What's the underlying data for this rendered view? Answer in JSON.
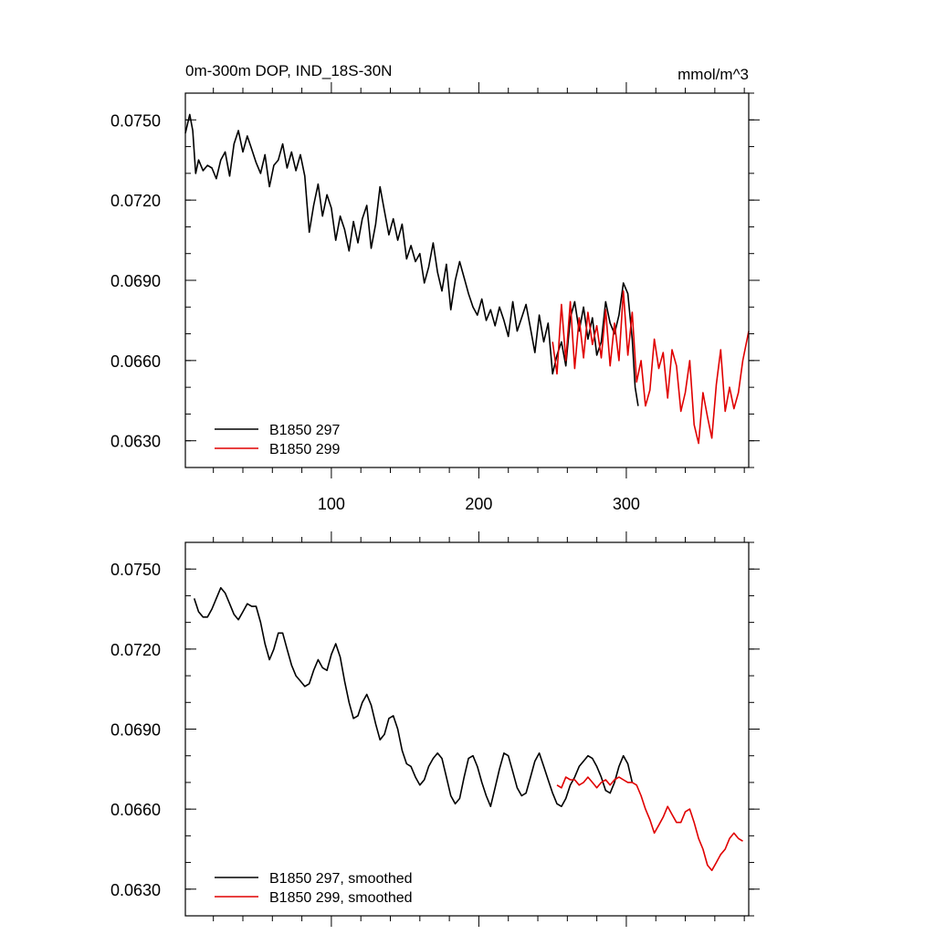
{
  "chart_data": [
    {
      "type": "line",
      "title": "0m-300m DOP, IND_18S-30N",
      "units": "mmol/m^3",
      "xlabel": "",
      "ylabel": "",
      "xlim": [
        1,
        383
      ],
      "ylim": [
        0.062,
        0.076
      ],
      "xticks": [
        100,
        200,
        300
      ],
      "xtick_labels": [
        "100",
        "200",
        "300"
      ],
      "yticks": [
        0.063,
        0.066,
        0.069,
        0.072,
        0.075
      ],
      "ytick_labels": [
        "0.0630",
        "0.0660",
        "0.0690",
        "0.0720",
        "0.0750"
      ],
      "grid": false,
      "legend_position": "bottom-left",
      "series": [
        {
          "name": "B1850 297",
          "color": "#000000",
          "x": [
            1,
            4,
            6,
            8,
            10,
            13,
            16,
            19,
            22,
            25,
            28,
            31,
            34,
            37,
            40,
            43,
            46,
            49,
            52,
            55,
            58,
            61,
            64,
            67,
            70,
            73,
            76,
            79,
            82,
            85,
            88,
            91,
            94,
            97,
            100,
            103,
            106,
            109,
            112,
            115,
            118,
            121,
            124,
            127,
            130,
            133,
            136,
            139,
            142,
            145,
            148,
            151,
            154,
            157,
            160,
            163,
            166,
            169,
            172,
            175,
            178,
            181,
            184,
            187,
            190,
            193,
            196,
            199,
            202,
            205,
            208,
            211,
            214,
            217,
            220,
            223,
            226,
            229,
            232,
            235,
            238,
            241,
            244,
            247,
            250,
            253,
            256,
            259,
            262,
            265,
            268,
            271,
            274,
            277,
            280,
            283,
            286,
            289,
            292,
            295,
            298,
            301,
            304,
            306,
            308
          ],
          "values": [
            0.0745,
            0.0752,
            0.0746,
            0.073,
            0.0735,
            0.0731,
            0.0733,
            0.0732,
            0.0728,
            0.0735,
            0.0738,
            0.0729,
            0.0741,
            0.0746,
            0.0738,
            0.0744,
            0.0739,
            0.0734,
            0.073,
            0.0737,
            0.0725,
            0.0733,
            0.0735,
            0.0741,
            0.0732,
            0.0738,
            0.0731,
            0.0737,
            0.0729,
            0.0708,
            0.0718,
            0.0726,
            0.0714,
            0.0722,
            0.0717,
            0.0705,
            0.0714,
            0.0709,
            0.0701,
            0.0712,
            0.0704,
            0.0713,
            0.0718,
            0.0702,
            0.0711,
            0.0725,
            0.0716,
            0.0707,
            0.0713,
            0.0705,
            0.0711,
            0.0698,
            0.0703,
            0.0697,
            0.07,
            0.0689,
            0.0695,
            0.0704,
            0.0693,
            0.0686,
            0.0696,
            0.0679,
            0.069,
            0.0697,
            0.0691,
            0.0685,
            0.068,
            0.0677,
            0.0683,
            0.0675,
            0.0679,
            0.0673,
            0.068,
            0.0675,
            0.0669,
            0.0682,
            0.0671,
            0.0676,
            0.0681,
            0.0672,
            0.0663,
            0.0677,
            0.0667,
            0.0674,
            0.0655,
            0.0662,
            0.0667,
            0.0658,
            0.0676,
            0.0682,
            0.0671,
            0.068,
            0.0668,
            0.0676,
            0.0662,
            0.0667,
            0.0682,
            0.0674,
            0.067,
            0.0677,
            0.0689,
            0.0685,
            0.0668,
            0.065,
            0.0643
          ]
        },
        {
          "name": "B1850 299",
          "color": "#e00000",
          "x": [
            250,
            253,
            256,
            259,
            262,
            265,
            268,
            271,
            274,
            277,
            280,
            283,
            286,
            289,
            292,
            295,
            298,
            301,
            304,
            307,
            310,
            313,
            316,
            319,
            322,
            325,
            328,
            331,
            334,
            337,
            340,
            343,
            346,
            349,
            352,
            355,
            358,
            361,
            364,
            367,
            370,
            373,
            376,
            379,
            383
          ],
          "values": [
            0.0667,
            0.0655,
            0.0681,
            0.066,
            0.0682,
            0.0657,
            0.0676,
            0.0661,
            0.0678,
            0.0666,
            0.0673,
            0.0661,
            0.0679,
            0.0658,
            0.0674,
            0.066,
            0.0686,
            0.0662,
            0.0678,
            0.0652,
            0.066,
            0.0643,
            0.0649,
            0.0668,
            0.0657,
            0.0663,
            0.0646,
            0.0664,
            0.0658,
            0.0641,
            0.0648,
            0.066,
            0.0636,
            0.0629,
            0.0648,
            0.0639,
            0.0631,
            0.0651,
            0.0664,
            0.0641,
            0.065,
            0.0642,
            0.0648,
            0.066,
            0.0671
          ]
        }
      ]
    },
    {
      "type": "line",
      "title": "",
      "xlabel": "",
      "ylabel": "",
      "xlim": [
        1,
        383
      ],
      "ylim": [
        0.062,
        0.076
      ],
      "xticks": [
        100,
        200,
        300
      ],
      "xtick_labels": [],
      "yticks": [
        0.063,
        0.066,
        0.069,
        0.072,
        0.075
      ],
      "ytick_labels": [
        "0.0630",
        "0.0660",
        "0.0690",
        "0.0720",
        "0.0750"
      ],
      "grid": false,
      "legend_position": "bottom-left",
      "series": [
        {
          "name": "B1850 297, smoothed",
          "color": "#000000",
          "x": [
            7,
            10,
            13,
            16,
            19,
            22,
            25,
            28,
            31,
            34,
            37,
            40,
            43,
            46,
            49,
            52,
            55,
            58,
            61,
            64,
            67,
            70,
            73,
            76,
            79,
            82,
            85,
            88,
            91,
            94,
            97,
            100,
            103,
            106,
            109,
            112,
            115,
            118,
            121,
            124,
            127,
            130,
            133,
            136,
            139,
            142,
            145,
            148,
            151,
            154,
            157,
            160,
            163,
            166,
            169,
            172,
            175,
            178,
            181,
            184,
            187,
            190,
            193,
            196,
            199,
            202,
            205,
            208,
            211,
            214,
            217,
            220,
            223,
            226,
            229,
            232,
            235,
            238,
            241,
            244,
            247,
            250,
            253,
            256,
            259,
            262,
            265,
            268,
            271,
            274,
            277,
            280,
            283,
            286,
            289,
            292,
            295,
            298,
            301,
            304
          ],
          "values": [
            0.0739,
            0.0734,
            0.0732,
            0.0732,
            0.0735,
            0.0739,
            0.0743,
            0.0741,
            0.0737,
            0.0733,
            0.0731,
            0.0734,
            0.0737,
            0.0736,
            0.0736,
            0.073,
            0.0722,
            0.0716,
            0.072,
            0.0726,
            0.0726,
            0.072,
            0.0714,
            0.071,
            0.0708,
            0.0706,
            0.0707,
            0.0712,
            0.0716,
            0.0713,
            0.0712,
            0.0718,
            0.0722,
            0.0717,
            0.0708,
            0.07,
            0.0694,
            0.0695,
            0.07,
            0.0703,
            0.0699,
            0.0692,
            0.0686,
            0.0688,
            0.0694,
            0.0695,
            0.069,
            0.0682,
            0.0677,
            0.0676,
            0.0672,
            0.0669,
            0.0671,
            0.0676,
            0.0679,
            0.0681,
            0.0679,
            0.0672,
            0.0665,
            0.0662,
            0.0664,
            0.0672,
            0.0679,
            0.068,
            0.0676,
            0.067,
            0.0665,
            0.0661,
            0.0668,
            0.0675,
            0.0681,
            0.068,
            0.0674,
            0.0668,
            0.0665,
            0.0666,
            0.0672,
            0.0678,
            0.0681,
            0.0676,
            0.0671,
            0.0666,
            0.0662,
            0.0661,
            0.0664,
            0.0669,
            0.0672,
            0.0676,
            0.0678,
            0.068,
            0.0679,
            0.0676,
            0.0672,
            0.0667,
            0.0666,
            0.067,
            0.0676,
            0.068,
            0.0677,
            0.067
          ]
        },
        {
          "name": "B1850 299, smoothed",
          "color": "#e00000",
          "x": [
            253,
            256,
            259,
            262,
            265,
            268,
            271,
            274,
            277,
            280,
            283,
            286,
            289,
            292,
            295,
            298,
            301,
            304,
            307,
            310,
            313,
            316,
            319,
            322,
            325,
            328,
            331,
            334,
            337,
            340,
            343,
            346,
            349,
            352,
            355,
            358,
            361,
            364,
            367,
            370,
            373,
            376,
            379
          ],
          "values": [
            0.0669,
            0.0668,
            0.0672,
            0.0671,
            0.0671,
            0.0669,
            0.067,
            0.0672,
            0.067,
            0.0668,
            0.067,
            0.0671,
            0.0669,
            0.0671,
            0.0672,
            0.0671,
            0.067,
            0.067,
            0.0669,
            0.0665,
            0.066,
            0.0656,
            0.0651,
            0.0654,
            0.0657,
            0.0661,
            0.0658,
            0.0655,
            0.0655,
            0.0659,
            0.066,
            0.0655,
            0.0649,
            0.0645,
            0.0639,
            0.0637,
            0.064,
            0.0643,
            0.0645,
            0.0649,
            0.0651,
            0.0649,
            0.0648
          ]
        }
      ]
    }
  ]
}
